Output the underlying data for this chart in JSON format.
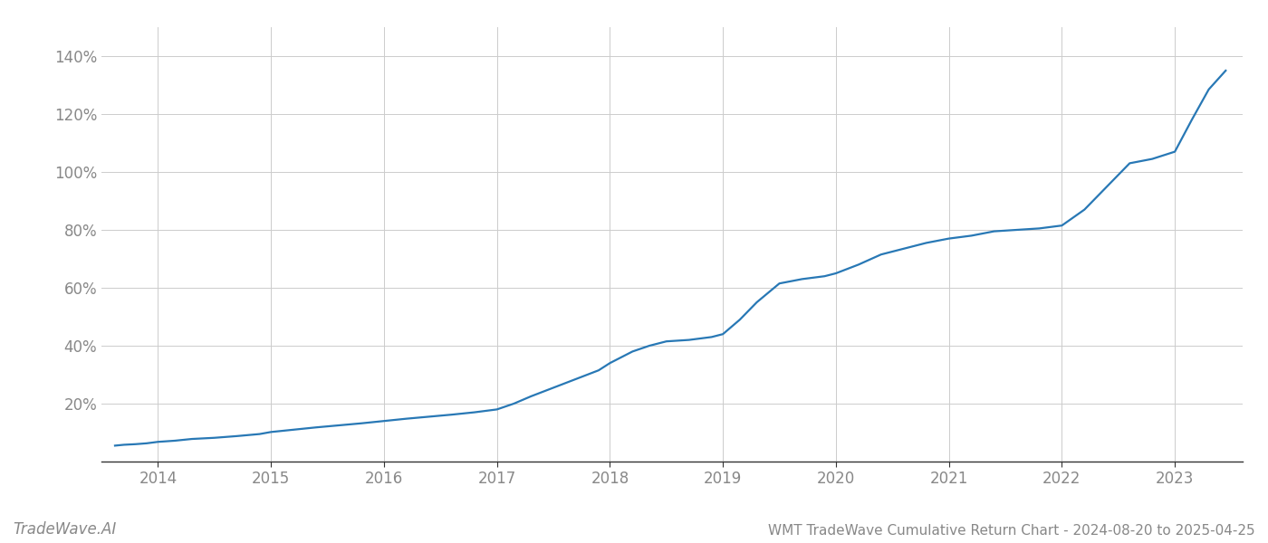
{
  "title": "WMT TradeWave Cumulative Return Chart - 2024-08-20 to 2025-04-25",
  "watermark": "TradeWave.AI",
  "line_color": "#2878b5",
  "background_color": "#ffffff",
  "grid_color": "#cccccc",
  "x_values": [
    2013.62,
    2013.7,
    2013.8,
    2013.9,
    2014.0,
    2014.15,
    2014.3,
    2014.5,
    2014.7,
    2014.9,
    2015.0,
    2015.2,
    2015.4,
    2015.6,
    2015.8,
    2016.0,
    2016.2,
    2016.4,
    2016.6,
    2016.8,
    2017.0,
    2017.15,
    2017.3,
    2017.5,
    2017.7,
    2017.9,
    2018.0,
    2018.1,
    2018.2,
    2018.35,
    2018.5,
    2018.7,
    2018.9,
    2019.0,
    2019.15,
    2019.3,
    2019.5,
    2019.7,
    2019.9,
    2020.0,
    2020.2,
    2020.4,
    2020.6,
    2020.8,
    2021.0,
    2021.2,
    2021.4,
    2021.6,
    2021.8,
    2022.0,
    2022.2,
    2022.4,
    2022.6,
    2022.8,
    2023.0,
    2023.15,
    2023.3,
    2023.45
  ],
  "y_values": [
    5.5,
    5.8,
    6.0,
    6.3,
    6.8,
    7.2,
    7.8,
    8.2,
    8.8,
    9.5,
    10.2,
    11.0,
    11.8,
    12.5,
    13.2,
    14.0,
    14.8,
    15.5,
    16.2,
    17.0,
    18.0,
    20.0,
    22.5,
    25.5,
    28.5,
    31.5,
    34.0,
    36.0,
    38.0,
    40.0,
    41.5,
    42.0,
    43.0,
    44.0,
    49.0,
    55.0,
    61.5,
    63.0,
    64.0,
    65.0,
    68.0,
    71.5,
    73.5,
    75.5,
    77.0,
    78.0,
    79.5,
    80.0,
    80.5,
    81.5,
    87.0,
    95.0,
    103.0,
    104.5,
    107.0,
    118.0,
    128.5,
    135.0
  ],
  "xlim": [
    2013.5,
    2023.6
  ],
  "ylim": [
    0,
    150
  ],
  "yticks": [
    20,
    40,
    60,
    80,
    100,
    120,
    140
  ],
  "xticks": [
    2014,
    2015,
    2016,
    2017,
    2018,
    2019,
    2020,
    2021,
    2022,
    2023
  ],
  "xtick_labels": [
    "2014",
    "2015",
    "2016",
    "2017",
    "2018",
    "2019",
    "2020",
    "2021",
    "2022",
    "2023"
  ],
  "line_width": 1.6,
  "title_fontsize": 11,
  "tick_fontsize": 12,
  "watermark_fontsize": 12,
  "title_color": "#555555",
  "tick_color": "#888888",
  "axis_color": "#333333"
}
